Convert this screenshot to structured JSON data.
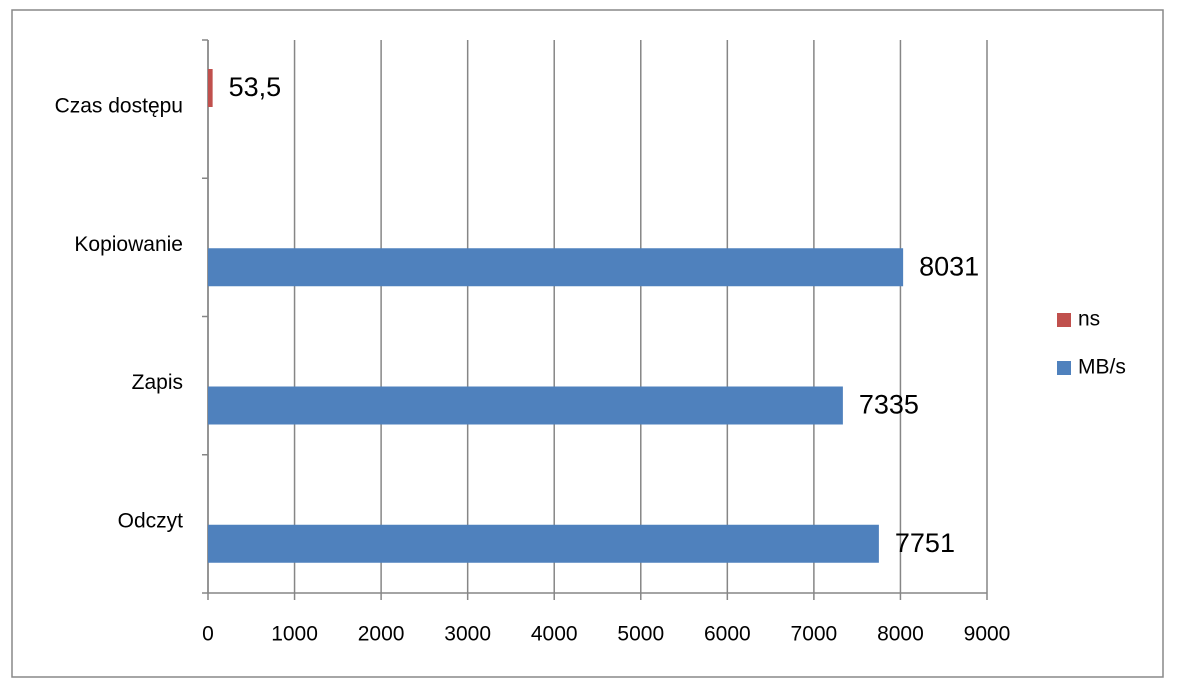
{
  "chart_data": {
    "type": "hbar",
    "categories": [
      "Odczyt",
      "Zapis",
      "Kopiowanie",
      "Czas dostępu"
    ],
    "series": [
      {
        "name": "ns",
        "color": "#c0504d",
        "values": [
          null,
          null,
          null,
          53.5
        ],
        "value_labels": [
          null,
          null,
          null,
          "53,5"
        ]
      },
      {
        "name": "MB/s",
        "color": "#4f81bd",
        "values": [
          7751,
          7335,
          8031,
          null
        ]
      }
    ],
    "xlim": [
      0,
      9000
    ],
    "xticks": [
      0,
      1000,
      2000,
      3000,
      4000,
      5000,
      6000,
      7000,
      8000,
      9000
    ],
    "grid": true,
    "legend": "right"
  }
}
